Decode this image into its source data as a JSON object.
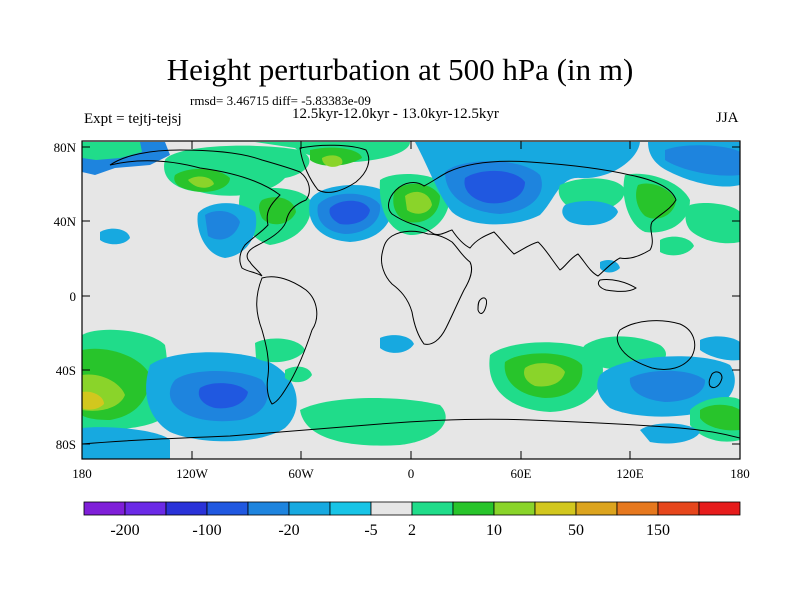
{
  "title": "Height perturbation at 500 hPa (in m)",
  "stats": "rmsd= 3.46715 diff= -5.83383e-09",
  "expt": "Expt = tejtj-tejsj",
  "period": "12.5kyr-12.0kyr - 13.0kyr-12.5kyr",
  "season": "JJA",
  "map": {
    "lat_ticks": [
      "80N",
      "40N",
      "0",
      "40S",
      "80S"
    ],
    "lon_ticks": [
      "180",
      "120W",
      "60W",
      "0",
      "60E",
      "120E",
      "180"
    ]
  },
  "colorbar": {
    "colors": [
      "#7f1fd8",
      "#6b2ae6",
      "#2a32d8",
      "#2058e0",
      "#1e84de",
      "#17a9e0",
      "#18c4e6",
      "#e6e6e6",
      "#20dc8a",
      "#28c42b",
      "#8ad42a",
      "#d2c71e",
      "#dca41e",
      "#e6781e",
      "#e6461c",
      "#e61c1c"
    ],
    "labels": [
      "-200",
      "-100",
      "-20",
      "-5",
      "2",
      "10",
      "50",
      "150"
    ],
    "label_bins": [
      1,
      3,
      5,
      7,
      8,
      10,
      12,
      14
    ]
  },
  "colors": {
    "background": "#e6e6e6",
    "neg_strong": "#2058e0",
    "neg_mid": "#1e84de",
    "neg_light": "#17a9e0",
    "pos_light": "#20dc8a",
    "pos_mid": "#28c42b",
    "pos_strong": "#8ad42a",
    "coast": "#000000"
  }
}
